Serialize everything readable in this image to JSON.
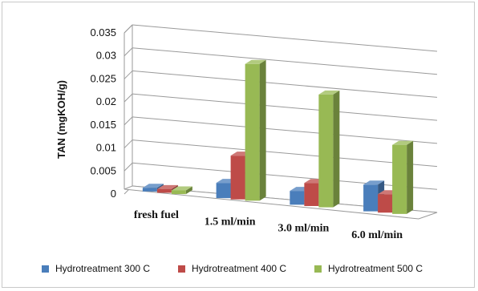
{
  "chart_data": {
    "type": "bar",
    "title": "",
    "xlabel": "",
    "ylabel": "TAN (mgKOH/g)",
    "ylim": [
      0,
      0.035
    ],
    "yticks": [
      "0",
      "0.005",
      "0.01",
      "0.015",
      "0.02",
      "0.025",
      "0.03",
      "0.035"
    ],
    "grid": true,
    "legend_position": "bottom",
    "categories": [
      "fresh fuel",
      "1.5 ml/min",
      "3.0 ml/min",
      "6.0 ml/min"
    ],
    "series": [
      {
        "name": "Hydrotreatment 300 C",
        "color": "#4a7ebb",
        "values": [
          0.0008,
          0.0033,
          0.003,
          0.0058
        ]
      },
      {
        "name": "Hydrotreatment 400 C",
        "color": "#be4b48",
        "values": [
          0.0008,
          0.0095,
          0.005,
          0.004
        ]
      },
      {
        "name": "Hydrotreatment 500 C",
        "color": "#98b954",
        "values": [
          0.0008,
          0.0297,
          0.0245,
          0.015
        ]
      }
    ]
  }
}
